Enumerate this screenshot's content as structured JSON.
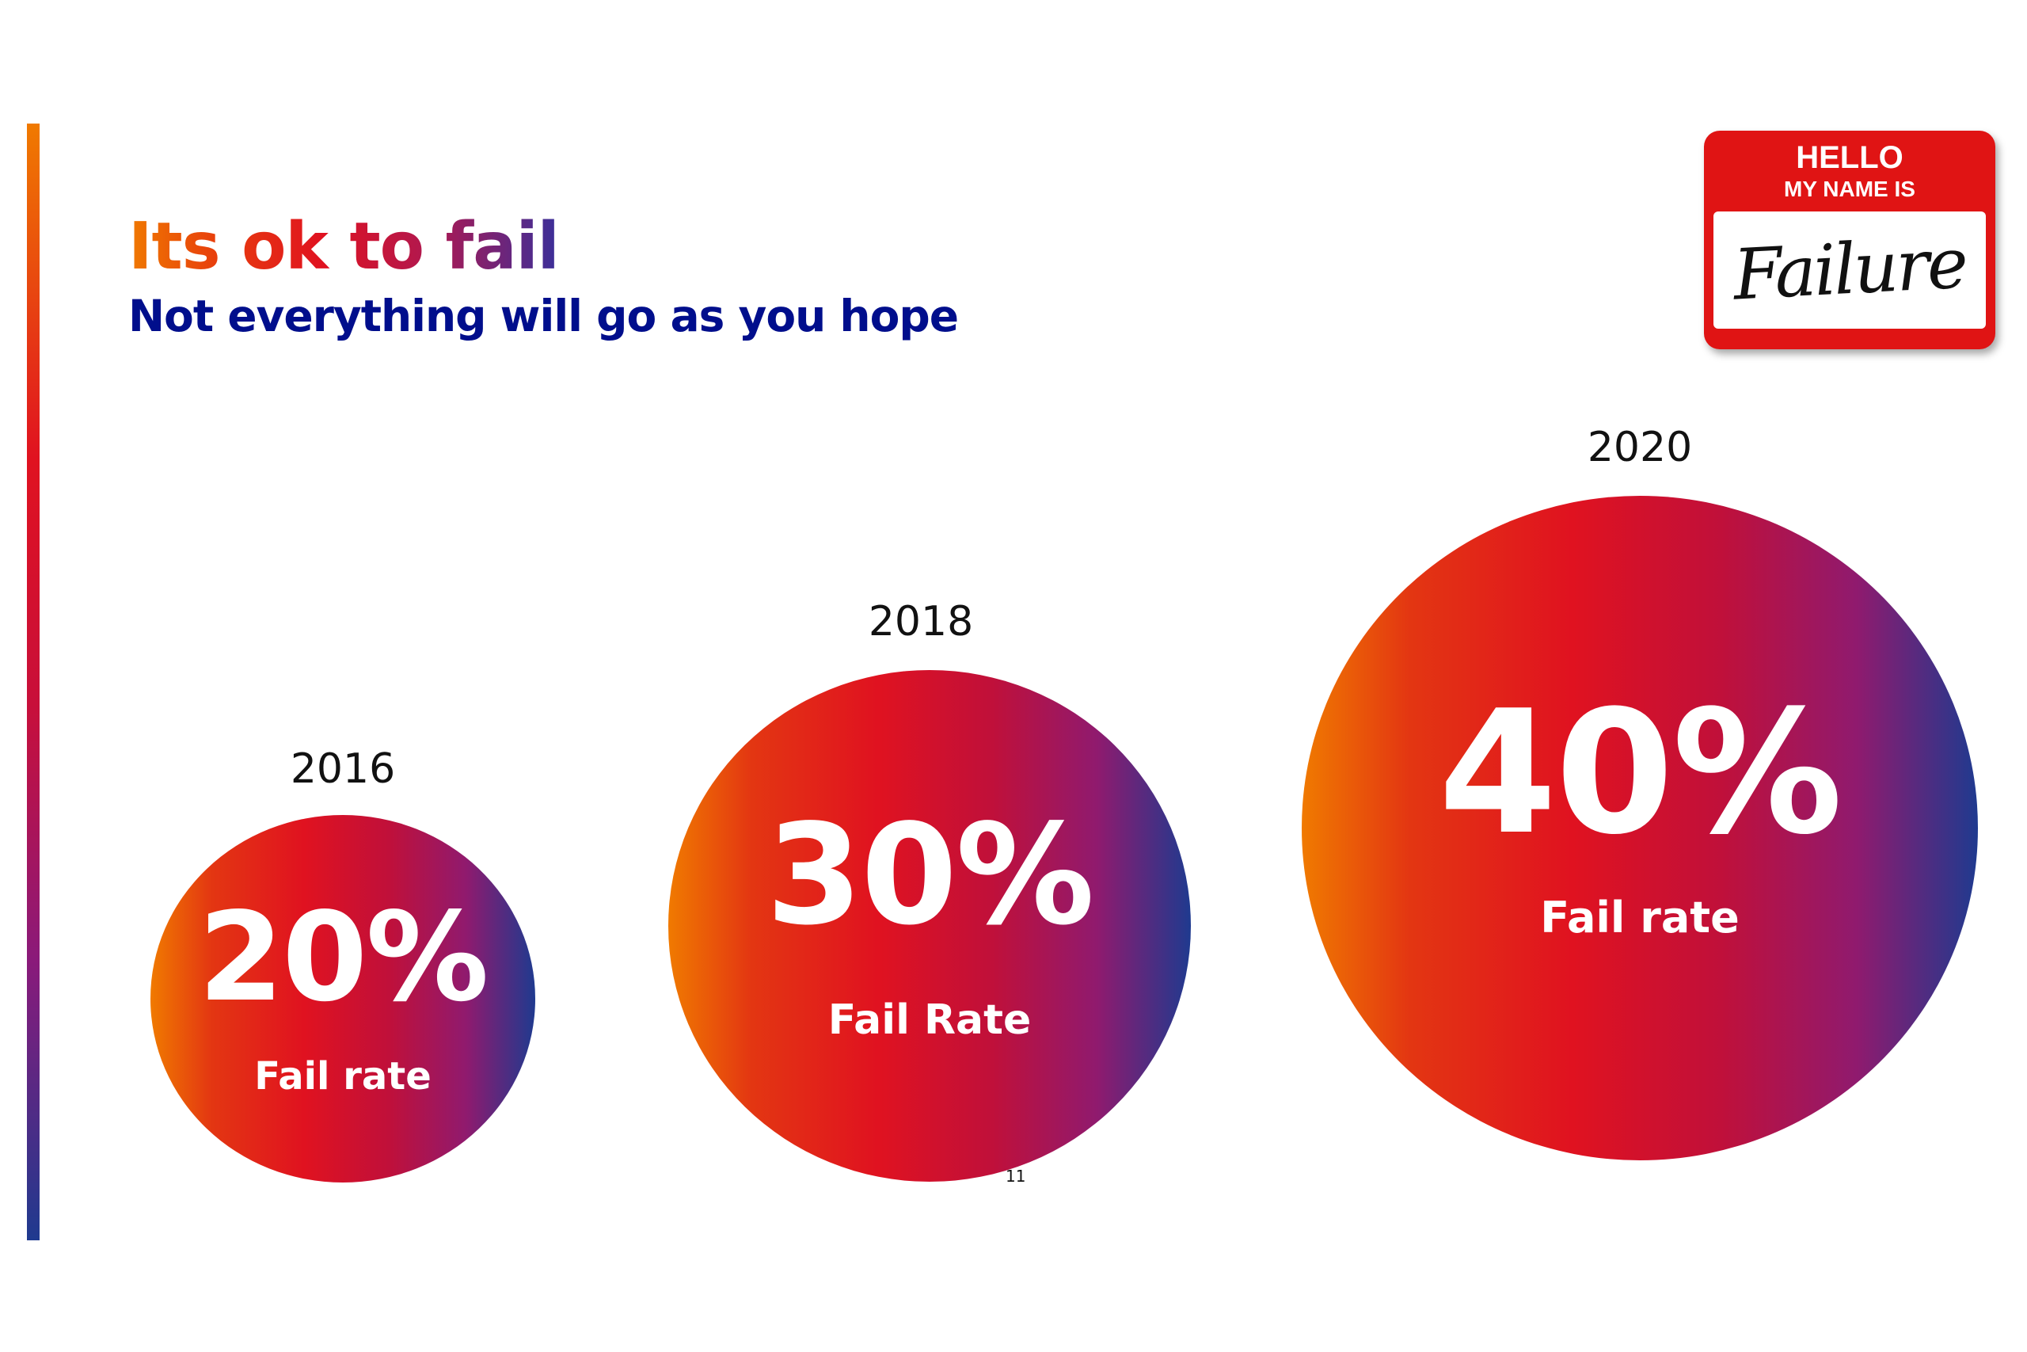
{
  "slide": {
    "title": "Its ok to fail",
    "subtitle": "Not everything will go as you hope",
    "page_number": "11"
  },
  "badge": {
    "hello": "HELLO",
    "my_name_is": "MY NAME IS",
    "name": "Failure"
  },
  "bubbles": [
    {
      "year": "2016",
      "value": "20%",
      "label": "Fail rate"
    },
    {
      "year": "2018",
      "value": "30%",
      "label": "Fail Rate"
    },
    {
      "year": "2020",
      "value": "40%",
      "label": "Fail rate"
    }
  ],
  "colors": {
    "gradient_start": "#f07a00",
    "gradient_mid": "#e01220",
    "gradient_end": "#1f3a8f",
    "subtitle": "#000e8c",
    "badge_red": "#e01414"
  }
}
